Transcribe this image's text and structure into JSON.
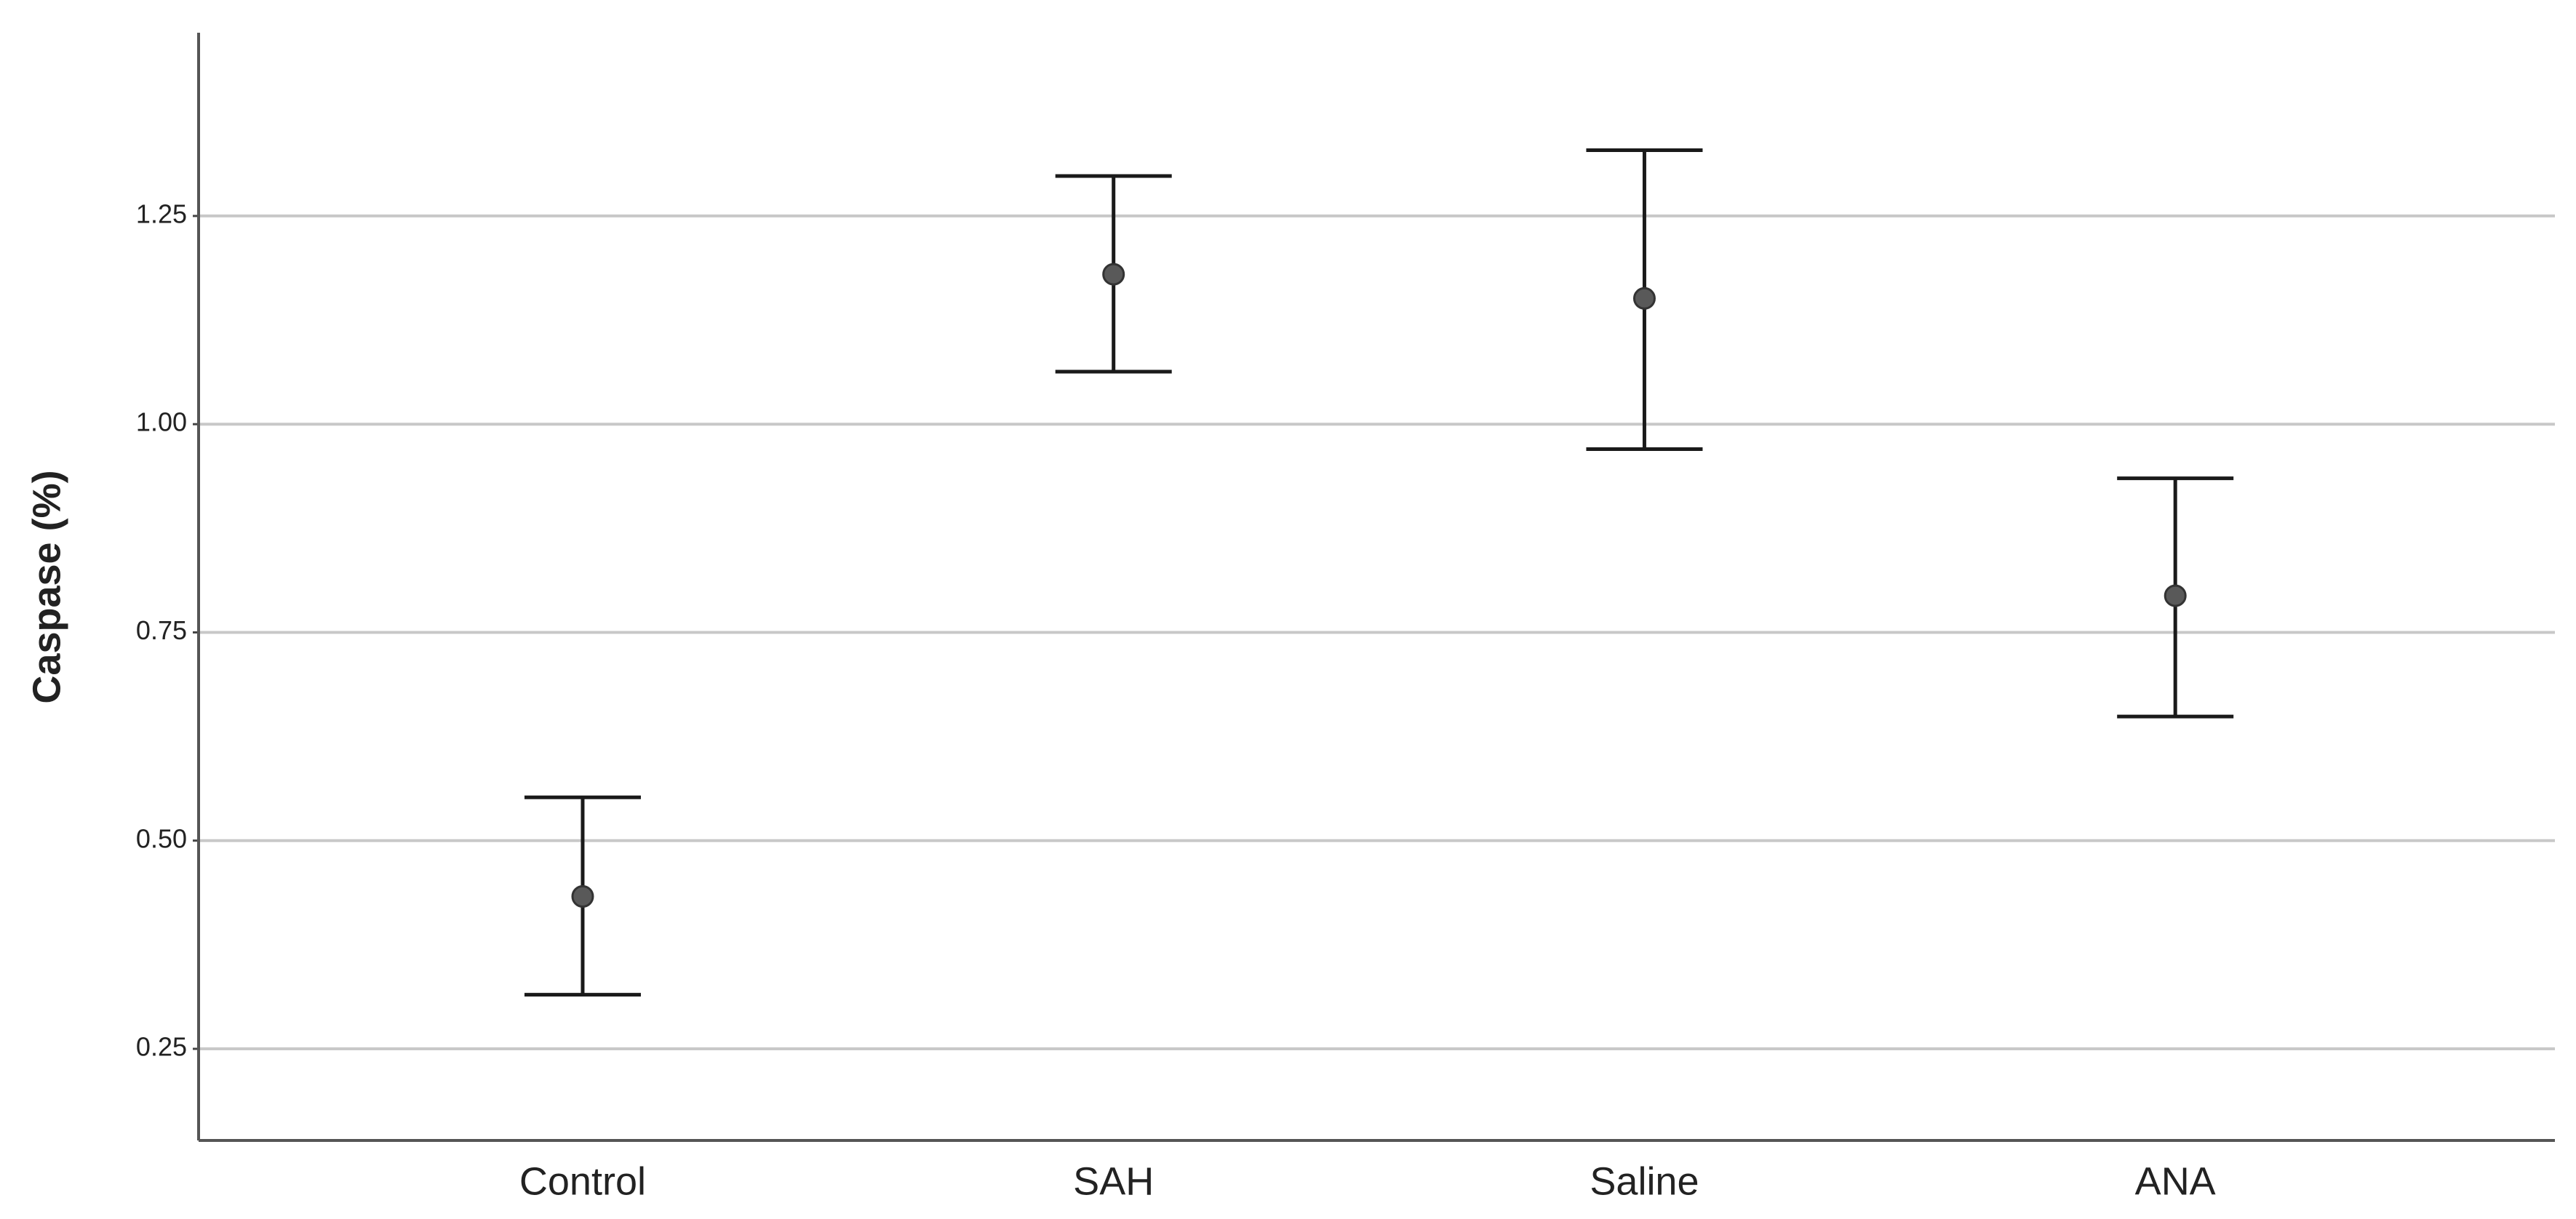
{
  "chart_data": {
    "type": "errorbar",
    "ylabel": "Caspase (%)",
    "categories": [
      "Control",
      "SAH",
      "Saline",
      "ANA"
    ],
    "values": [
      0.433,
      1.18,
      1.151,
      0.794
    ],
    "lower": [
      0.315,
      1.063,
      0.97,
      0.649
    ],
    "upper": [
      0.552,
      1.298,
      1.329,
      0.935
    ],
    "color": "#595959",
    "bar_color": "#1a1a1a",
    "ylim": [
      0.14,
      1.47
    ],
    "yticks": [
      0.25,
      {
        "value": 0.5,
        "label": "0.50"
      },
      0.75,
      {
        "value": 1,
        "label": "1.00"
      },
      1.25
    ],
    "grid": true
  }
}
